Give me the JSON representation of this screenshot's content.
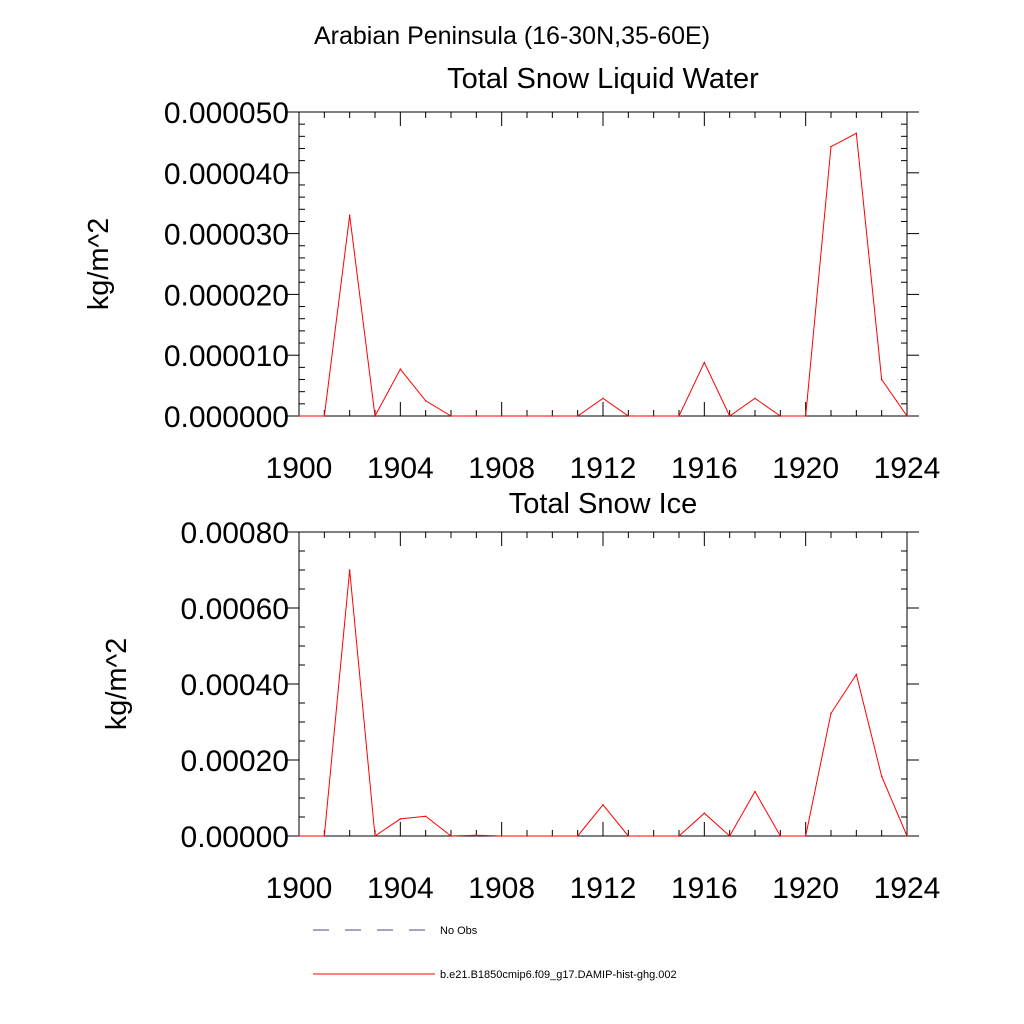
{
  "main_title": "Arabian Peninsula (16-30N,35-60E)",
  "chart_data": [
    {
      "type": "line",
      "title": "Total Snow Liquid Water",
      "xlabel": "",
      "ylabel": "kg/m^2",
      "xlim": [
        1900,
        1924
      ],
      "ylim": [
        0,
        5e-05
      ],
      "x_ticks": [
        1900,
        1904,
        1908,
        1912,
        1916,
        1920,
        1924
      ],
      "x_tick_labels": [
        "1900",
        "1904",
        "1908",
        "1912",
        "1916",
        "1920",
        "1924"
      ],
      "y_ticks": [
        0,
        1e-05,
        2e-05,
        3e-05,
        4e-05,
        5e-05
      ],
      "y_tick_labels": [
        "0.000000",
        "0.000010",
        "0.000020",
        "0.000030",
        "0.000040",
        "0.000050"
      ],
      "grid": false,
      "x": [
        1900,
        1901,
        1902,
        1903,
        1904,
        1905,
        1906,
        1907,
        1908,
        1909,
        1910,
        1911,
        1912,
        1913,
        1914,
        1915,
        1916,
        1917,
        1918,
        1919,
        1920,
        1921,
        1922,
        1923,
        1924
      ],
      "series": [
        {
          "name": "b.e21.B1850cmip6.f09_g17.DAMIP-hist-ghg.002",
          "color": "#ff0000",
          "values": [
            0,
            0,
            3.3e-05,
            0,
            7.7e-06,
            2.5e-06,
            0,
            0,
            0,
            0,
            0,
            0,
            2.9e-06,
            0,
            0,
            0,
            8.8e-06,
            0,
            2.9e-06,
            0,
            0,
            4.43e-05,
            4.65e-05,
            6e-06,
            0
          ]
        }
      ]
    },
    {
      "type": "line",
      "title": "Total Snow Ice",
      "xlabel": "",
      "ylabel": "kg/m^2",
      "xlim": [
        1900,
        1924
      ],
      "ylim": [
        0,
        0.0008
      ],
      "x_ticks": [
        1900,
        1904,
        1908,
        1912,
        1916,
        1920,
        1924
      ],
      "x_tick_labels": [
        "1900",
        "1904",
        "1908",
        "1912",
        "1916",
        "1920",
        "1924"
      ],
      "y_ticks": [
        0,
        0.0002,
        0.0004,
        0.0006,
        0.0008
      ],
      "y_tick_labels": [
        "0.00000",
        "0.00020",
        "0.00040",
        "0.00060",
        "0.00080"
      ],
      "grid": false,
      "x": [
        1900,
        1901,
        1902,
        1903,
        1904,
        1905,
        1906,
        1907,
        1908,
        1909,
        1910,
        1911,
        1912,
        1913,
        1914,
        1915,
        1916,
        1917,
        1918,
        1919,
        1920,
        1921,
        1922,
        1923,
        1924
      ],
      "series": [
        {
          "name": "b.e21.B1850cmip6.f09_g17.DAMIP-hist-ghg.002",
          "color": "#ff0000",
          "values": [
            0,
            0,
            0.0007,
            0,
            4.5e-05,
            5.2e-05,
            0,
            2e-06,
            0,
            0,
            0,
            0,
            8.2e-05,
            0,
            0,
            0,
            6e-05,
            0,
            0.000117,
            0,
            0,
            0.000323,
            0.000425,
            0.000157,
            0
          ]
        }
      ]
    }
  ],
  "legend": {
    "placement": "bottom",
    "entries": [
      {
        "label": "No Obs",
        "style": "dashed",
        "color": "#4a4a8a"
      },
      {
        "label": "b.e21.B1850cmip6.f09_g17.DAMIP-hist-ghg.002",
        "style": "solid",
        "color": "#ff0000"
      }
    ]
  }
}
